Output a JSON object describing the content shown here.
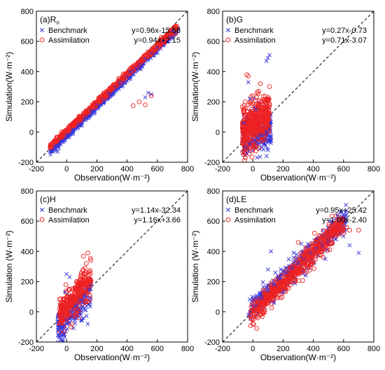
{
  "colors": {
    "benchmark": "#3333dd",
    "assimilation": "#ee2222",
    "axis": "#000000"
  },
  "chart_data": [
    {
      "type": "scatter",
      "panel_title": "(a)R",
      "panel_title_sub": "n",
      "xlabel": "Observation(W·m⁻²)",
      "ylabel": "Simulation(W·m⁻²)",
      "xlim": [
        -200,
        800
      ],
      "ylim": [
        -200,
        800
      ],
      "xticks": [
        "-200",
        "0",
        "200",
        "400",
        "600",
        "800"
      ],
      "yticks": [
        "-200",
        "0",
        "200",
        "400",
        "600",
        "800"
      ],
      "one_to_one_line": true,
      "legend": {
        "position": "top-left",
        "entries": [
          {
            "name": "Benchmark",
            "equation": "y=0.96x-15.58"
          },
          {
            "name": "Assimilation",
            "equation": "y=0.94x+2.15"
          }
        ]
      },
      "series": [
        {
          "name": "Benchmark",
          "marker": "x",
          "slope": 0.96,
          "intercept": -15.58,
          "points": [
            [
              -80,
              -90
            ],
            [
              -40,
              -60
            ],
            [
              0,
              -20
            ],
            [
              40,
              20
            ],
            [
              80,
              60
            ],
            [
              120,
              100
            ],
            [
              160,
              140
            ],
            [
              200,
              180
            ],
            [
              240,
              215
            ],
            [
              280,
              255
            ],
            [
              320,
              295
            ],
            [
              360,
              330
            ],
            [
              400,
              370
            ],
            [
              440,
              405
            ],
            [
              480,
              445
            ],
            [
              520,
              485
            ],
            [
              560,
              520
            ],
            [
              600,
              560
            ],
            [
              640,
              600
            ],
            [
              680,
              630
            ],
            [
              720,
              660
            ],
            [
              -60,
              -130
            ],
            [
              100,
              60
            ],
            [
              300,
              250
            ],
            [
              500,
              440
            ],
            [
              420,
              400
            ],
            [
              460,
              420
            ],
            [
              350,
              320
            ],
            [
              540,
              260
            ],
            [
              560,
              250
            ],
            [
              520,
              230
            ],
            [
              700,
              670
            ]
          ]
        },
        {
          "name": "Assimilation",
          "marker": "o",
          "slope": 0.94,
          "intercept": 2.15,
          "points": [
            [
              -80,
              -70
            ],
            [
              -40,
              -35
            ],
            [
              0,
              5
            ],
            [
              40,
              40
            ],
            [
              80,
              78
            ],
            [
              120,
              115
            ],
            [
              160,
              155
            ],
            [
              200,
              190
            ],
            [
              240,
              228
            ],
            [
              280,
              265
            ],
            [
              320,
              305
            ],
            [
              360,
              340
            ],
            [
              400,
              378
            ],
            [
              440,
              415
            ],
            [
              480,
              455
            ],
            [
              520,
              490
            ],
            [
              560,
              530
            ],
            [
              600,
              565
            ],
            [
              640,
              600
            ],
            [
              680,
              640
            ],
            [
              720,
              650
            ],
            [
              480,
              200
            ],
            [
              520,
              180
            ],
            [
              440,
              175
            ],
            [
              560,
              240
            ],
            [
              300,
              285
            ],
            [
              620,
              585
            ]
          ]
        }
      ]
    },
    {
      "type": "scatter",
      "panel_title": "(b)G",
      "xlabel": "Observation(W·m⁻²)",
      "ylabel": "Simulation(W·m⁻²)",
      "xlim": [
        -200,
        800
      ],
      "ylim": [
        -200,
        800
      ],
      "xticks": [
        "-200",
        "0",
        "200",
        "400",
        "600",
        "800"
      ],
      "yticks": [
        "-200",
        "0",
        "200",
        "400",
        "600",
        "800"
      ],
      "one_to_one_line": true,
      "legend": {
        "position": "top-left",
        "entries": [
          {
            "name": "Benchmark",
            "equation": "y=0.27x-0.73"
          },
          {
            "name": "Assimilation",
            "equation": "y=0.71x-3.07"
          }
        ]
      },
      "series": [
        {
          "name": "Benchmark",
          "marker": "x",
          "slope": 0.27,
          "intercept": -0.73,
          "points": [
            [
              -50,
              -100
            ],
            [
              -20,
              -80
            ],
            [
              0,
              -60
            ],
            [
              30,
              -40
            ],
            [
              60,
              -20
            ],
            [
              90,
              0
            ],
            [
              110,
              20
            ],
            [
              -40,
              -140
            ],
            [
              100,
              -120
            ],
            [
              -60,
              60
            ],
            [
              80,
              -80
            ],
            [
              120,
              -60
            ],
            [
              100,
              490
            ],
            [
              110,
              510
            ],
            [
              90,
              470
            ],
            [
              -30,
              330
            ],
            [
              -20,
              220
            ],
            [
              20,
              150
            ]
          ]
        },
        {
          "name": "Assimilation",
          "marker": "o",
          "slope": 0.71,
          "intercept": -3.07,
          "points": [
            [
              -50,
              -60
            ],
            [
              -20,
              -20
            ],
            [
              0,
              20
            ],
            [
              30,
              60
            ],
            [
              60,
              100
            ],
            [
              90,
              140
            ],
            [
              110,
              180
            ],
            [
              -40,
              380
            ],
            [
              -30,
              370
            ],
            [
              50,
              320
            ],
            [
              40,
              270
            ],
            [
              -50,
              200
            ],
            [
              0,
              240
            ],
            [
              100,
              200
            ],
            [
              -60,
              140
            ],
            [
              20,
              -100
            ]
          ]
        }
      ]
    },
    {
      "type": "scatter",
      "panel_title": "(c)H",
      "xlabel": "Observation(W·m⁻²)",
      "ylabel": "Simulation (W·m⁻²)",
      "xlim": [
        -200,
        800
      ],
      "ylim": [
        -200,
        800
      ],
      "xticks": [
        "-200",
        "0",
        "200",
        "400",
        "600",
        "800"
      ],
      "yticks": [
        "-200",
        "0",
        "200",
        "400",
        "600",
        "800"
      ],
      "one_to_one_line": true,
      "legend": {
        "position": "top-left",
        "entries": [
          {
            "name": "Benchmark",
            "equation": "y=1.14x-32.34"
          },
          {
            "name": "Assimilation",
            "equation": "y=1.16x+3.66"
          }
        ]
      },
      "series": [
        {
          "name": "Benchmark",
          "marker": "x",
          "slope": 1.14,
          "intercept": -32.34,
          "points": [
            [
              -50,
              -150
            ],
            [
              -30,
              -100
            ],
            [
              0,
              -60
            ],
            [
              30,
              0
            ],
            [
              60,
              40
            ],
            [
              90,
              80
            ],
            [
              120,
              110
            ],
            [
              150,
              150
            ],
            [
              -40,
              -180
            ],
            [
              0,
              250
            ],
            [
              20,
              230
            ],
            [
              100,
              -60
            ],
            [
              140,
              -80
            ],
            [
              160,
              180
            ],
            [
              -10,
              130
            ]
          ]
        },
        {
          "name": "Assimilation",
          "marker": "o",
          "slope": 1.16,
          "intercept": 3.66,
          "points": [
            [
              -40,
              40
            ],
            [
              -20,
              60
            ],
            [
              0,
              80
            ],
            [
              30,
              100
            ],
            [
              60,
              120
            ],
            [
              90,
              140
            ],
            [
              120,
              180
            ],
            [
              150,
              220
            ],
            [
              130,
              320
            ],
            [
              140,
              390
            ],
            [
              110,
              280
            ],
            [
              -30,
              -30
            ],
            [
              0,
              -20
            ],
            [
              80,
              -40
            ],
            [
              160,
              200
            ]
          ]
        }
      ]
    },
    {
      "type": "scatter",
      "panel_title": "(d)LE",
      "xlabel": "Observation(W·m⁻²)",
      "ylabel": "Simulation (W·m⁻²)",
      "xlim": [
        -200,
        800
      ],
      "ylim": [
        -200,
        800
      ],
      "xticks": [
        "-200",
        "0",
        "200",
        "400",
        "600",
        "800"
      ],
      "yticks": [
        "-200",
        "0",
        "200",
        "400",
        "600",
        "800"
      ],
      "one_to_one_line": true,
      "legend": {
        "position": "top-left",
        "entries": [
          {
            "name": "Benchmark",
            "equation": "y=0.95x+25.42"
          },
          {
            "name": "Assimilation",
            "equation": "y=1.00x-2.40"
          }
        ]
      },
      "series": [
        {
          "name": "Benchmark",
          "marker": "x",
          "slope": 0.95,
          "intercept": 25.42,
          "points": [
            [
              -20,
              0
            ],
            [
              20,
              40
            ],
            [
              60,
              100
            ],
            [
              100,
              140
            ],
            [
              140,
              180
            ],
            [
              180,
              220
            ],
            [
              220,
              260
            ],
            [
              260,
              290
            ],
            [
              300,
              320
            ],
            [
              340,
              350
            ],
            [
              380,
              390
            ],
            [
              420,
              420
            ],
            [
              460,
              440
            ],
            [
              500,
              470
            ],
            [
              550,
              480
            ],
            [
              600,
              500
            ],
            [
              700,
              390
            ],
            [
              120,
              400
            ],
            [
              100,
              280
            ],
            [
              200,
              130
            ],
            [
              350,
              240
            ],
            [
              480,
              350
            ],
            [
              -30,
              -20
            ],
            [
              640,
              440
            ]
          ]
        },
        {
          "name": "Assimilation",
          "marker": "o",
          "slope": 1.0,
          "intercept": -2.4,
          "points": [
            [
              -10,
              0
            ],
            [
              30,
              20
            ],
            [
              70,
              60
            ],
            [
              110,
              100
            ],
            [
              150,
              140
            ],
            [
              190,
              180
            ],
            [
              230,
              230
            ],
            [
              270,
              260
            ],
            [
              310,
              300
            ],
            [
              350,
              340
            ],
            [
              390,
              380
            ],
            [
              430,
              420
            ],
            [
              470,
              450
            ],
            [
              510,
              480
            ],
            [
              550,
              500
            ],
            [
              600,
              520
            ],
            [
              620,
              560
            ],
            [
              640,
              540
            ],
            [
              700,
              540
            ],
            [
              300,
              460
            ],
            [
              250,
              180
            ],
            [
              400,
              330
            ]
          ]
        }
      ]
    }
  ]
}
